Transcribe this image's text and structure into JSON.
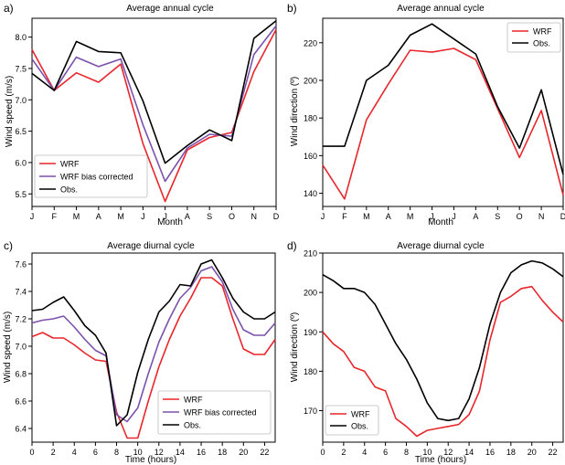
{
  "colors": {
    "wrf": "#e8262c",
    "wrf_bias": "#7b52ab",
    "obs": "#000000"
  },
  "chart_data": [
    {
      "type": "line",
      "panel_label": "a)",
      "title": "Average annual cycle",
      "xlabel": "Month",
      "ylabel": "Wind speed (m/s)",
      "categories": [
        "J",
        "F",
        "M",
        "A",
        "M",
        "J",
        "J",
        "A",
        "S",
        "O",
        "N",
        "D"
      ],
      "ylim": [
        5.3,
        8.3
      ],
      "yticks": [
        5.5,
        6.0,
        6.5,
        7.0,
        7.5,
        8.0
      ],
      "ytick_labels": [
        "5.5",
        "6.0",
        "6.5",
        "7.0",
        "7.5",
        "8.0"
      ],
      "legend": "bottom-left",
      "series": [
        {
          "name": "WRF",
          "color": "#e8262c",
          "values": [
            7.8,
            7.15,
            7.43,
            7.28,
            7.57,
            6.3,
            5.38,
            6.2,
            6.4,
            6.48,
            7.45,
            8.12
          ]
        },
        {
          "name": "WRF bias corrected",
          "color": "#7b52ab",
          "values": [
            7.65,
            7.15,
            7.68,
            7.53,
            7.65,
            6.6,
            5.7,
            6.23,
            6.45,
            6.42,
            7.72,
            8.18
          ]
        },
        {
          "name": "Obs.",
          "color": "#000000",
          "values": [
            7.42,
            7.15,
            7.93,
            7.77,
            7.75,
            6.98,
            5.99,
            6.27,
            6.52,
            6.35,
            7.98,
            8.26
          ]
        }
      ]
    },
    {
      "type": "line",
      "panel_label": "b)",
      "title": "Average annual cycle",
      "xlabel": "Month",
      "ylabel": "Wind direction (º)",
      "categories": [
        "J",
        "F",
        "M",
        "A",
        "M",
        "J",
        "J",
        "A",
        "S",
        "O",
        "N",
        "D"
      ],
      "ylim": [
        133,
        233
      ],
      "yticks": [
        140,
        160,
        180,
        200,
        220
      ],
      "ytick_labels": [
        "140",
        "160",
        "180",
        "200",
        "220"
      ],
      "legend": "top-right",
      "series": [
        {
          "name": "WRF",
          "color": "#e8262c",
          "values": [
            155,
            137,
            179,
            198,
            216,
            215,
            217,
            211,
            185,
            159,
            184,
            139
          ]
        },
        {
          "name": "Obs.",
          "color": "#000000",
          "values": [
            165,
            165,
            200,
            208,
            224,
            230,
            222,
            214,
            186,
            164,
            195,
            150
          ]
        }
      ]
    },
    {
      "type": "line",
      "panel_label": "c)",
      "title": "Average diurnal cycle",
      "xlabel": "Time (hours)",
      "ylabel": "Wind speed (m/s)",
      "x": [
        0,
        1,
        2,
        3,
        4,
        5,
        6,
        7,
        8,
        9,
        10,
        11,
        12,
        13,
        14,
        15,
        16,
        17,
        18,
        19,
        20,
        21,
        22,
        23
      ],
      "xlim": [
        0,
        23
      ],
      "xticks": [
        0,
        2,
        4,
        6,
        8,
        10,
        12,
        14,
        16,
        18,
        20,
        22
      ],
      "ylim": [
        6.3,
        7.68
      ],
      "yticks": [
        6.4,
        6.6,
        6.8,
        7.0,
        7.2,
        7.4,
        7.6
      ],
      "ytick_labels": [
        "6.4",
        "6.6",
        "6.8",
        "7.0",
        "7.2",
        "7.4",
        "7.6"
      ],
      "legend": "bottom-center",
      "series": [
        {
          "name": "WRF",
          "color": "#e8262c",
          "values": [
            7.07,
            7.1,
            7.06,
            7.06,
            7.01,
            6.95,
            6.9,
            6.89,
            6.52,
            6.33,
            6.33,
            6.6,
            6.85,
            7.05,
            7.22,
            7.35,
            7.5,
            7.5,
            7.44,
            7.2,
            6.98,
            6.94,
            6.94,
            7.05
          ]
        },
        {
          "name": "WRF bias corrected",
          "color": "#7b52ab",
          "values": [
            7.17,
            7.19,
            7.2,
            7.22,
            7.14,
            7.05,
            6.97,
            6.93,
            6.5,
            6.45,
            6.55,
            6.8,
            7.03,
            7.2,
            7.35,
            7.43,
            7.55,
            7.58,
            7.47,
            7.27,
            7.12,
            7.08,
            7.08,
            7.17
          ]
        },
        {
          "name": "Obs.",
          "color": "#000000",
          "values": [
            7.26,
            7.27,
            7.32,
            7.36,
            7.26,
            7.15,
            7.08,
            6.95,
            6.42,
            6.5,
            6.81,
            7.05,
            7.25,
            7.33,
            7.45,
            7.44,
            7.6,
            7.63,
            7.5,
            7.35,
            7.25,
            7.2,
            7.2,
            7.25
          ]
        }
      ]
    },
    {
      "type": "line",
      "panel_label": "d)",
      "title": "Average diurnal cycle",
      "xlabel": "Time (hours)",
      "ylabel": "Wind direction (º)",
      "x": [
        0,
        1,
        2,
        3,
        4,
        5,
        6,
        7,
        8,
        9,
        10,
        11,
        12,
        13,
        14,
        15,
        16,
        17,
        18,
        19,
        20,
        21,
        22,
        23
      ],
      "xlim": [
        0,
        23
      ],
      "xticks": [
        0,
        2,
        4,
        6,
        8,
        10,
        12,
        14,
        16,
        18,
        20,
        22
      ],
      "ylim": [
        162,
        210
      ],
      "yticks": [
        170,
        180,
        190,
        200,
        210
      ],
      "ytick_labels": [
        "170",
        "180",
        "190",
        "200",
        "210"
      ],
      "legend": "bottom-left",
      "series": [
        {
          "name": "WRF",
          "color": "#e8262c",
          "values": [
            190,
            187,
            185,
            181,
            180,
            176,
            175,
            168,
            166,
            163.5,
            165,
            165.5,
            166,
            166.5,
            169,
            175,
            188,
            197.5,
            199,
            201,
            201.5,
            198,
            195,
            192.5
          ]
        },
        {
          "name": "Obs.",
          "color": "#000000",
          "values": [
            204.5,
            203,
            201,
            201,
            200,
            197,
            192,
            187,
            183,
            178,
            172,
            168,
            167.5,
            168,
            173,
            181,
            192,
            200,
            205,
            207,
            208,
            207.5,
            206,
            204
          ]
        }
      ]
    }
  ]
}
